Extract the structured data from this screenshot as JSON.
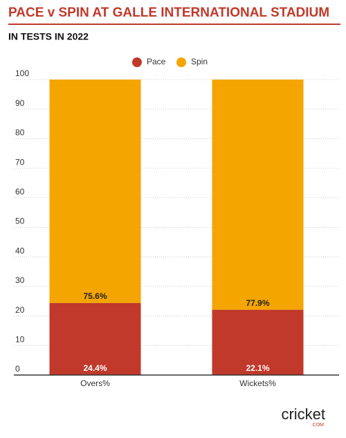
{
  "chart_data": {
    "type": "stacked-bar",
    "title": "PACE v SPIN AT GALLE INTERNATIONAL STADIUM",
    "subtitle": "IN TESTS IN 2022",
    "categories": [
      "Overs%",
      "Wickets%"
    ],
    "series": [
      {
        "name": "Pace",
        "color": "#c0392b",
        "values": [
          24.4,
          22.1
        ],
        "value_labels": [
          "24.4%",
          "22.1%"
        ]
      },
      {
        "name": "Spin",
        "color": "#f5a500",
        "values": [
          75.6,
          77.9
        ],
        "value_labels": [
          "75.6%",
          "77.9%"
        ]
      }
    ],
    "ylim": [
      0,
      100
    ],
    "yticks": [
      0,
      10,
      20,
      30,
      40,
      50,
      60,
      70,
      80,
      90,
      100
    ],
    "grid": true,
    "legend": "top"
  },
  "logo": {
    "name": "cricket",
    "suffix": ".COM"
  }
}
